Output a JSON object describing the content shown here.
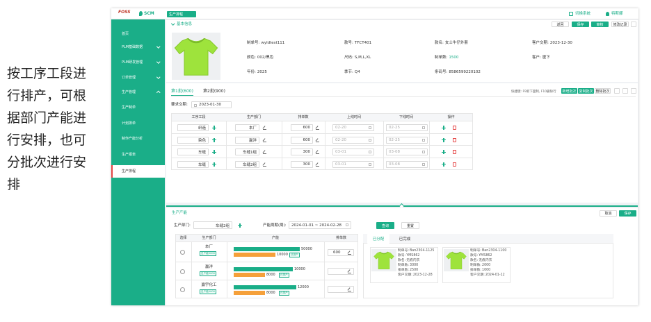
{
  "caption": "按工序工段进行排产，可根据部门产能进行安排，也可分批次进行安排",
  "topbar": {
    "logo": "FOSS",
    "system": "SCM",
    "tab": "生产排程",
    "switch_system": "切换系统",
    "user": "特斯娜"
  },
  "menu": [
    "首页",
    "PLM基础数据",
    "PLM研发管理",
    "订单管理",
    "生产管理",
    "生产制单",
    "计划排单",
    "制作产能分析",
    "生产报表",
    "生产排程"
  ],
  "basic_info": {
    "title": "基本信息",
    "buttons": [
      "返回",
      "保存",
      "审核",
      "修改记录"
    ],
    "fields": [
      {
        "label": "制单号:",
        "value": "wyldtest111"
      },
      {
        "label": "款号:",
        "value": "TFCT401"
      },
      {
        "label": "款名:",
        "value": "女士牛仔外套"
      },
      {
        "label": "客户交期:",
        "value": "2023-12-30"
      },
      {
        "label": "颜色:",
        "value": "002/黑色"
      },
      {
        "label": "尺码:",
        "value": "S,M,L,XL"
      },
      {
        "label": "制单数:",
        "value": "1500"
      },
      {
        "label": "客户:",
        "value": "厦下"
      },
      {
        "label": "年份:",
        "value": "2025"
      },
      {
        "label": "季节:",
        "value": "Q4"
      },
      {
        "label": "条码号:",
        "value": "8586599220102"
      }
    ]
  },
  "batches": {
    "tabs": [
      "第1批(600)",
      "第2批(900)"
    ],
    "shortcuts": "快捷键: F9新下面制, F10删除行",
    "buttons": [
      "新增批次",
      "复制批次",
      "删除批次"
    ],
    "due_label": "要求交期:",
    "due": "2023-01-30",
    "columns": [
      "工序工段",
      "生产部门",
      "排单数",
      "上线时间",
      "下线时间",
      "操作"
    ],
    "rows": [
      {
        "process": "织造",
        "dept": "本厂",
        "qty": 600,
        "start": "02-20",
        "end": "02-25"
      },
      {
        "process": "染色",
        "dept": "赢洋",
        "qty": 600,
        "start": "02-20",
        "end": "02-25"
      },
      {
        "process": "车缝",
        "dept": "车缝1组",
        "qty": 300,
        "start": "03-01",
        "end": "03-08"
      },
      {
        "process": "车缝",
        "dept": "车缝2组",
        "qty": 300,
        "start": "03-01",
        "end": "03-08"
      }
    ]
  },
  "capacity": {
    "title": "生产产能",
    "buttons": [
      "取消",
      "保存"
    ],
    "dept_label": "生产部门:",
    "dept": "车缝2组",
    "period_label": "产能周期(周):",
    "period": "2024-01-01 ~ 2024-02-28",
    "search_buttons": [
      "查询",
      "重置"
    ],
    "columns": [
      "选择",
      "生产部门",
      "产能",
      "排单数"
    ],
    "rows": [
      {
        "dept": "本厂",
        "tag": "日产能5000",
        "total": 50000,
        "used": 10000,
        "used_tag": "已排产",
        "qty": 600
      },
      {
        "dept": "赢洋",
        "tag": "日产能5000",
        "total": 10000,
        "used": 8000,
        "used_tag": "已排产"
      },
      {
        "dept": "赢宇化工",
        "tag": "日产能5000",
        "total": 12000,
        "used": 8000,
        "used_tag": "已排产"
      }
    ]
  },
  "allocation": {
    "tabs": [
      "已分配",
      "已完成"
    ],
    "cards": [
      {
        "fields": [
          {
            "label": "制单号:",
            "value": "Ban2304-1125"
          },
          {
            "label": "款号:",
            "value": "YMS862"
          },
          {
            "label": "款名:",
            "value": "无痕内衣"
          },
          {
            "label": "制单数:",
            "value": "3000"
          },
          {
            "label": "排单数:",
            "value": "2500"
          },
          {
            "label": "客户交期:",
            "value": "2023-12-28"
          }
        ]
      },
      {
        "fields": [
          {
            "label": "制单号:",
            "value": "Ban2304-1100"
          },
          {
            "label": "款号:",
            "value": "YMS862"
          },
          {
            "label": "款名:",
            "value": "无痕内衣"
          },
          {
            "label": "制单数:",
            "value": "2000"
          },
          {
            "label": "排单数:",
            "value": "1000"
          },
          {
            "label": "客户交期:",
            "value": "2024-01-12"
          }
        ]
      }
    ]
  }
}
